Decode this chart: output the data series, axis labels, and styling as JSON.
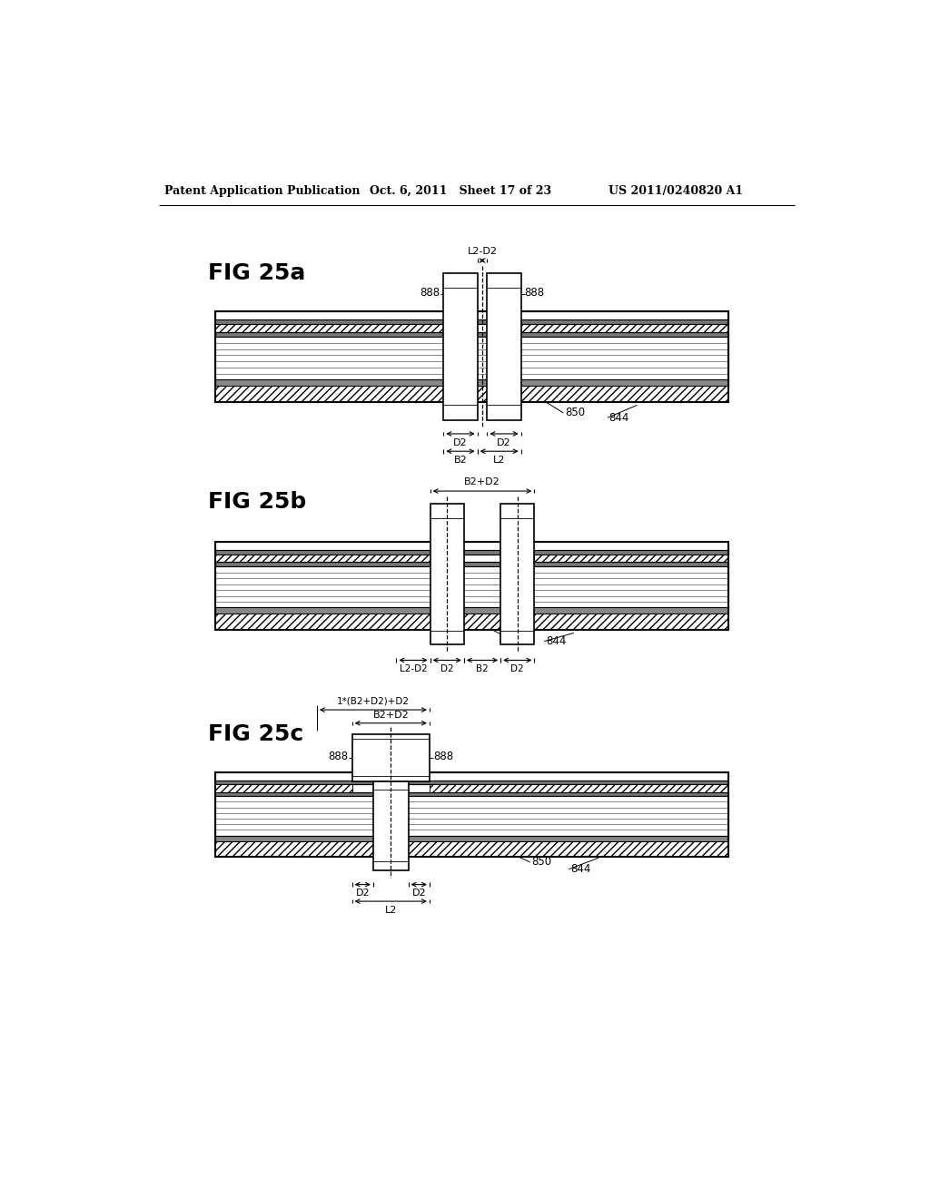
{
  "background_color": "#ffffff",
  "header_left": "Patent Application Publication",
  "header_center": "Oct. 6, 2011   Sheet 17 of 23",
  "header_right": "US 2011/0240820 A1",
  "fig25a_label": "FIG 25a",
  "fig25b_label": "FIG 25b",
  "fig25c_label": "FIG 25c",
  "ref_888": "888",
  "ref_850": "850",
  "ref_844": "844",
  "dim_L2D2": "L2-D2",
  "dim_D2": "D2",
  "dim_B2": "B2",
  "dim_L2": "L2",
  "dim_B2D2": "B2+D2",
  "dim_1B2D2D2": "1*(B2+D2)+D2"
}
